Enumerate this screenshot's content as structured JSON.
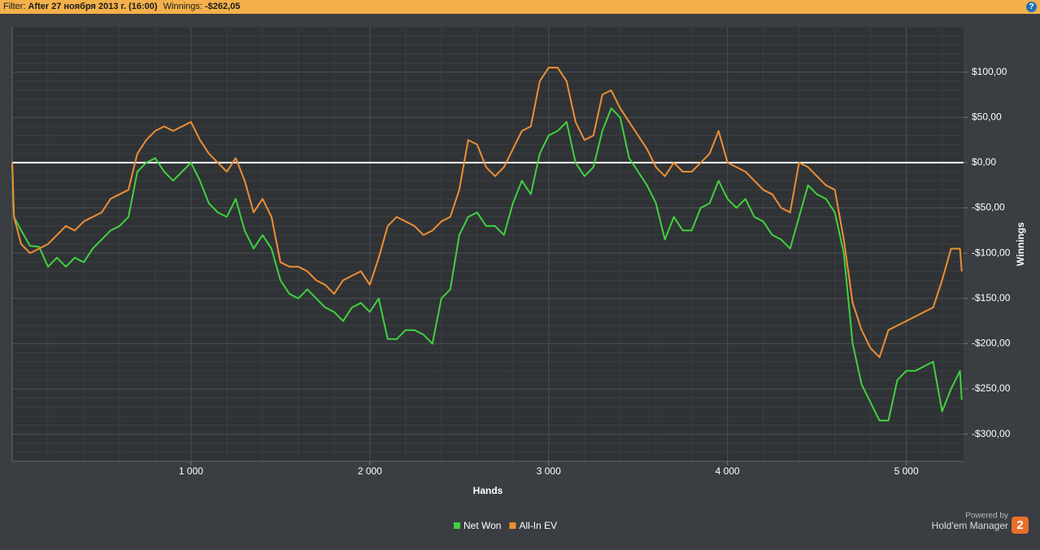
{
  "header": {
    "filter_label": "Filter:",
    "filter_value": "After 27 ноября 2013 г. (16:00)",
    "winnings_label": "Winnings:",
    "winnings_value": "-$262,05",
    "help": "?"
  },
  "branding": {
    "powered_by": "Powered by",
    "product": "Hold'em Manager",
    "logo": "2"
  },
  "chart_data": {
    "type": "line",
    "x_label": "Hands",
    "y_label": "Winnings",
    "x": [
      0,
      10,
      50,
      100,
      150,
      200,
      250,
      300,
      350,
      400,
      450,
      500,
      550,
      600,
      650,
      700,
      750,
      800,
      850,
      900,
      950,
      1000,
      1050,
      1100,
      1150,
      1200,
      1250,
      1300,
      1350,
      1400,
      1450,
      1500,
      1550,
      1600,
      1650,
      1700,
      1750,
      1800,
      1850,
      1900,
      1950,
      2000,
      2050,
      2100,
      2150,
      2200,
      2250,
      2300,
      2350,
      2400,
      2450,
      2500,
      2550,
      2600,
      2650,
      2700,
      2750,
      2800,
      2850,
      2900,
      2950,
      3000,
      3050,
      3100,
      3150,
      3200,
      3250,
      3300,
      3350,
      3400,
      3450,
      3500,
      3550,
      3600,
      3650,
      3700,
      3750,
      3800,
      3850,
      3900,
      3950,
      4000,
      4050,
      4100,
      4150,
      4200,
      4250,
      4300,
      4350,
      4400,
      4450,
      4500,
      4550,
      4600,
      4650,
      4700,
      4750,
      4800,
      4850,
      4900,
      4950,
      5000,
      5050,
      5100,
      5150,
      5200,
      5250,
      5300,
      5310
    ],
    "series": [
      {
        "name": "Net Won",
        "color": "#3fd13f",
        "values": [
          0,
          -60,
          -75,
          -92,
          -93,
          -115,
          -105,
          -115,
          -105,
          -110,
          -95,
          -85,
          -75,
          -70,
          -60,
          -10,
          0,
          5,
          -10,
          -20,
          -10,
          0,
          -20,
          -45,
          -55,
          -60,
          -40,
          -75,
          -95,
          -80,
          -95,
          -130,
          -145,
          -150,
          -140,
          -150,
          -160,
          -165,
          -175,
          -160,
          -155,
          -165,
          -150,
          -195,
          -195,
          -185,
          -185,
          -190,
          -200,
          -150,
          -140,
          -80,
          -60,
          -55,
          -70,
          -70,
          -80,
          -45,
          -20,
          -35,
          10,
          30,
          35,
          45,
          0,
          -15,
          -5,
          35,
          60,
          50,
          5,
          -10,
          -25,
          -45,
          -85,
          -60,
          -75,
          -75,
          -50,
          -45,
          -20,
          -40,
          -50,
          -40,
          -60,
          -65,
          -80,
          -85,
          -95,
          -60,
          -25,
          -35,
          -40,
          -55,
          -100,
          -200,
          -245,
          -265,
          -285,
          -285,
          -240,
          -230,
          -230,
          -225,
          -220,
          -275,
          -250,
          -230,
          -262.05
        ]
      },
      {
        "name": "All-In EV",
        "color": "#ec8f33",
        "values": [
          0,
          -60,
          -90,
          -100,
          -95,
          -90,
          -80,
          -70,
          -75,
          -65,
          -60,
          -55,
          -40,
          -35,
          -30,
          10,
          25,
          35,
          40,
          35,
          40,
          45,
          25,
          10,
          0,
          -10,
          5,
          -20,
          -55,
          -40,
          -60,
          -110,
          -115,
          -115,
          -120,
          -130,
          -135,
          -145,
          -130,
          -125,
          -120,
          -135,
          -105,
          -70,
          -60,
          -65,
          -70,
          -80,
          -75,
          -65,
          -60,
          -30,
          25,
          20,
          -5,
          -15,
          -5,
          15,
          35,
          40,
          90,
          105,
          105,
          90,
          45,
          25,
          30,
          75,
          80,
          60,
          45,
          30,
          15,
          -5,
          -15,
          0,
          -10,
          -10,
          0,
          10,
          35,
          0,
          -5,
          -10,
          -20,
          -30,
          -35,
          -50,
          -55,
          0,
          -5,
          -15,
          -25,
          -30,
          -85,
          -155,
          -185,
          -205,
          -215,
          -185,
          -180,
          -175,
          -170,
          -165,
          -160,
          -130,
          -95,
          -95,
          -120
        ]
      }
    ],
    "xlim": [
      0,
      5320
    ],
    "ylim": [
      -330,
      150
    ],
    "xticks": [
      {
        "value": 1000,
        "label": "1 000"
      },
      {
        "value": 2000,
        "label": "2 000"
      },
      {
        "value": 3000,
        "label": "3 000"
      },
      {
        "value": 4000,
        "label": "4 000"
      },
      {
        "value": 5000,
        "label": "5 000"
      }
    ],
    "yticks": [
      {
        "value": 100,
        "label": "$100,00"
      },
      {
        "value": 50,
        "label": "$50,00"
      },
      {
        "value": 0,
        "label": "$0,00"
      },
      {
        "value": -50,
        "label": "-$50,00"
      },
      {
        "value": -100,
        "label": "-$100,00"
      },
      {
        "value": -150,
        "label": "-$150,00"
      },
      {
        "value": -200,
        "label": "-$200,00"
      },
      {
        "value": -250,
        "label": "-$250,00"
      },
      {
        "value": -300,
        "label": "-$300,00"
      }
    ],
    "reference_line": 0,
    "grid": true,
    "legend": "bottom"
  }
}
